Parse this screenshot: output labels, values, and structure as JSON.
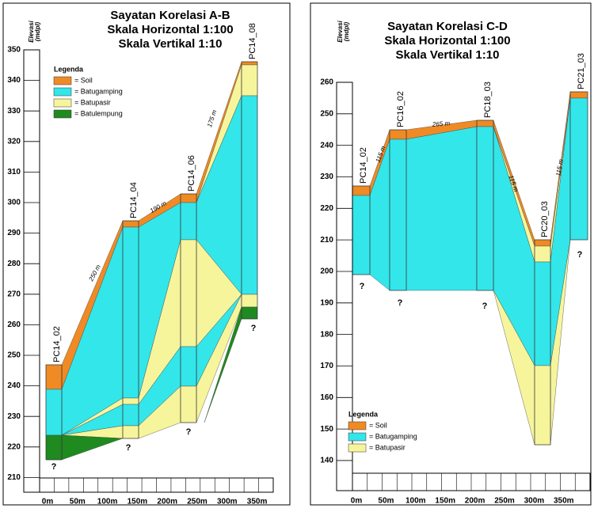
{
  "panels": [
    {
      "title": [
        "Sayatan Korelasi A-B",
        "Skala Horizontal 1:100",
        "Skala Vertikal 1:10"
      ],
      "y_axis_label": [
        "Elevasi",
        "(mdpl)"
      ],
      "y_ticks": [
        350,
        340,
        330,
        320,
        310,
        300,
        290,
        280,
        270,
        260,
        250,
        240,
        230,
        220,
        210
      ],
      "x_ticks": [
        "0m",
        "50m",
        "100m",
        "150m",
        "200m",
        "250m",
        "300m",
        "350m"
      ],
      "wells": [
        "PC14_02",
        "PC14_04",
        "PC14_06",
        "PC14_08"
      ],
      "distances": [
        "250 m",
        "190 m",
        "175 m"
      ],
      "unknown_marks": [
        "?",
        "?",
        "?",
        "?"
      ],
      "legend": {
        "title": "Legenda",
        "items": [
          "= Soil",
          "= Batugamping",
          "= Batupasir",
          "= Batulempung"
        ]
      }
    },
    {
      "title": [
        "Sayatan Korelasi C-D",
        "Skala Horizontal 1:100",
        "Skala Vertikal 1:10"
      ],
      "y_axis_label": [
        "Elevasi",
        "(mdpl)"
      ],
      "y_ticks": [
        260,
        250,
        240,
        230,
        220,
        210,
        200,
        190,
        180,
        170,
        160,
        150,
        140
      ],
      "x_ticks": [
        "0m",
        "50m",
        "100m",
        "150m",
        "200m",
        "250m",
        "300m",
        "350m"
      ],
      "wells": [
        "PC14_02",
        "PC16_02",
        "PC18_03",
        "PC20_03",
        "PC21_03"
      ],
      "distances": [
        "115 m",
        "265 m",
        "115 m",
        "115 m"
      ],
      "unknown_marks": [
        "?",
        "?",
        "?",
        "?"
      ],
      "legend": {
        "title": "Legenda",
        "items": [
          "= Soil",
          "= Batugamping",
          "= Batupasir"
        ]
      }
    }
  ]
}
